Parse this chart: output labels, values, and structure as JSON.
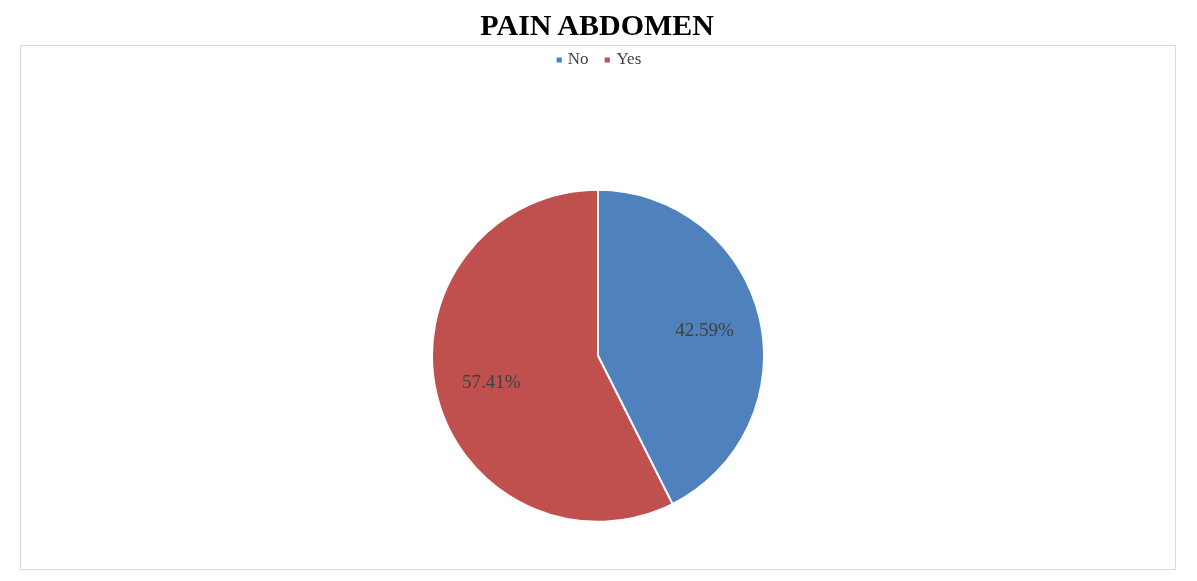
{
  "chart_data": {
    "type": "pie",
    "title": "PAIN ABDOMEN",
    "categories": [
      "No",
      "Yes"
    ],
    "values": [
      42.59,
      57.41
    ],
    "colors": [
      "#4f81bd",
      "#c0504d"
    ],
    "value_labels": [
      "42.59%",
      "57.41%"
    ],
    "legend": "top"
  }
}
